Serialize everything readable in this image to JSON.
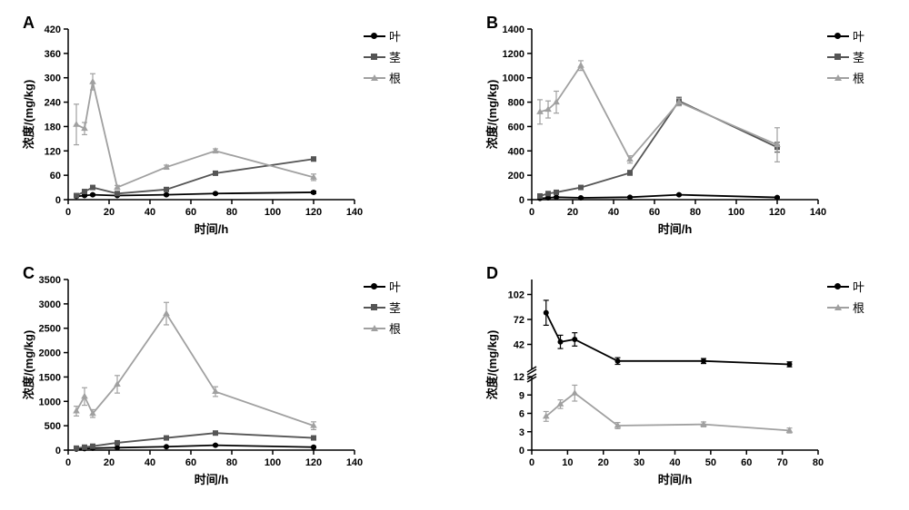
{
  "common": {
    "xlabel": "时间/h",
    "ylabel": "浓度/(mg/kg)",
    "axis_label_fontsize": 13,
    "tick_fontsize": 11,
    "background_color": "#ffffff",
    "axis_color": "#000000",
    "line_width": 1.8,
    "marker_size": 5
  },
  "legend_labels": {
    "leaf": "叶",
    "stem": "茎",
    "root": "根"
  },
  "series_style": {
    "leaf": {
      "color": "#000000",
      "marker": "circle"
    },
    "stem": {
      "color": "#555555",
      "marker": "square"
    },
    "root": {
      "color": "#a0a0a0",
      "marker": "triangle"
    }
  },
  "panels": {
    "A": {
      "label": "A",
      "type": "line-scatter-errorbar",
      "xlim": [
        0,
        140
      ],
      "xtick_step": 20,
      "ylim": [
        0,
        420
      ],
      "ytick_step": 60,
      "legend": [
        "leaf",
        "stem",
        "root"
      ],
      "series": {
        "leaf": {
          "x": [
            4,
            8,
            12,
            24,
            48,
            72,
            120
          ],
          "y": [
            8,
            10,
            12,
            10,
            12,
            15,
            18
          ],
          "err": [
            2,
            2,
            2,
            2,
            2,
            2,
            3
          ]
        },
        "stem": {
          "x": [
            4,
            8,
            12,
            24,
            48,
            72,
            120
          ],
          "y": [
            10,
            20,
            30,
            15,
            25,
            65,
            100
          ],
          "err": [
            3,
            3,
            3,
            3,
            3,
            4,
            5
          ]
        },
        "root": {
          "x": [
            4,
            8,
            12,
            24,
            48,
            72,
            120
          ],
          "y": [
            185,
            175,
            290,
            30,
            80,
            120,
            55
          ],
          "err": [
            50,
            15,
            20,
            5,
            5,
            5,
            8
          ]
        }
      }
    },
    "B": {
      "label": "B",
      "type": "line-scatter-errorbar",
      "xlim": [
        0,
        140
      ],
      "xtick_step": 20,
      "ylim": [
        0,
        1400
      ],
      "ytick_step": 200,
      "legend": [
        "leaf",
        "stem",
        "root"
      ],
      "series": {
        "leaf": {
          "x": [
            4,
            8,
            12,
            24,
            48,
            72,
            120
          ],
          "y": [
            10,
            15,
            20,
            15,
            20,
            40,
            18
          ],
          "err": [
            5,
            5,
            5,
            5,
            5,
            5,
            5
          ]
        },
        "stem": {
          "x": [
            4,
            8,
            12,
            24,
            48,
            72,
            120
          ],
          "y": [
            30,
            50,
            60,
            100,
            220,
            810,
            430
          ],
          "err": [
            10,
            10,
            10,
            15,
            20,
            30,
            40
          ]
        },
        "root": {
          "x": [
            4,
            8,
            12,
            24,
            48,
            72,
            120
          ],
          "y": [
            720,
            740,
            800,
            1100,
            330,
            800,
            450
          ],
          "err": [
            100,
            70,
            90,
            40,
            30,
            30,
            140
          ]
        }
      }
    },
    "C": {
      "label": "C",
      "type": "line-scatter-errorbar",
      "xlim": [
        0,
        140
      ],
      "xtick_step": 20,
      "ylim": [
        0,
        3500
      ],
      "ytick_step": 500,
      "legend": [
        "leaf",
        "stem",
        "root"
      ],
      "series": {
        "leaf": {
          "x": [
            4,
            8,
            12,
            24,
            48,
            72,
            120
          ],
          "y": [
            20,
            30,
            40,
            50,
            70,
            100,
            60
          ],
          "err": [
            10,
            10,
            10,
            10,
            10,
            15,
            15
          ]
        },
        "stem": {
          "x": [
            4,
            8,
            12,
            24,
            48,
            72,
            120
          ],
          "y": [
            40,
            60,
            80,
            150,
            250,
            350,
            250
          ],
          "err": [
            15,
            15,
            15,
            20,
            25,
            30,
            30
          ]
        },
        "root": {
          "x": [
            4,
            8,
            12,
            24,
            48,
            72,
            120
          ],
          "y": [
            800,
            1100,
            750,
            1350,
            2800,
            1200,
            500
          ],
          "err": [
            100,
            180,
            80,
            180,
            230,
            100,
            80
          ]
        }
      }
    },
    "D": {
      "label": "D",
      "type": "line-scatter-errorbar-broken",
      "xlim": [
        0,
        80
      ],
      "xtick_step": 10,
      "y_segments": [
        {
          "ymin": 0,
          "ymax": 12,
          "ytick_step": 3,
          "frac": 0.45
        },
        {
          "ymin": 12,
          "ymax": 120,
          "ytick_step": 30,
          "frac": 0.55
        }
      ],
      "legend": [
        "leaf",
        "root"
      ],
      "series": {
        "leaf": {
          "x": [
            4,
            8,
            12,
            24,
            48,
            72
          ],
          "y": [
            80,
            45,
            48,
            22,
            22,
            18
          ],
          "err": [
            15,
            8,
            8,
            4,
            3,
            3
          ]
        },
        "root": {
          "x": [
            4,
            8,
            12,
            24,
            48,
            72
          ],
          "y": [
            5.5,
            7.5,
            9.3,
            4.0,
            4.2,
            3.2
          ],
          "err": [
            0.8,
            0.7,
            1.3,
            0.5,
            0.4,
            0.4
          ]
        }
      }
    }
  }
}
